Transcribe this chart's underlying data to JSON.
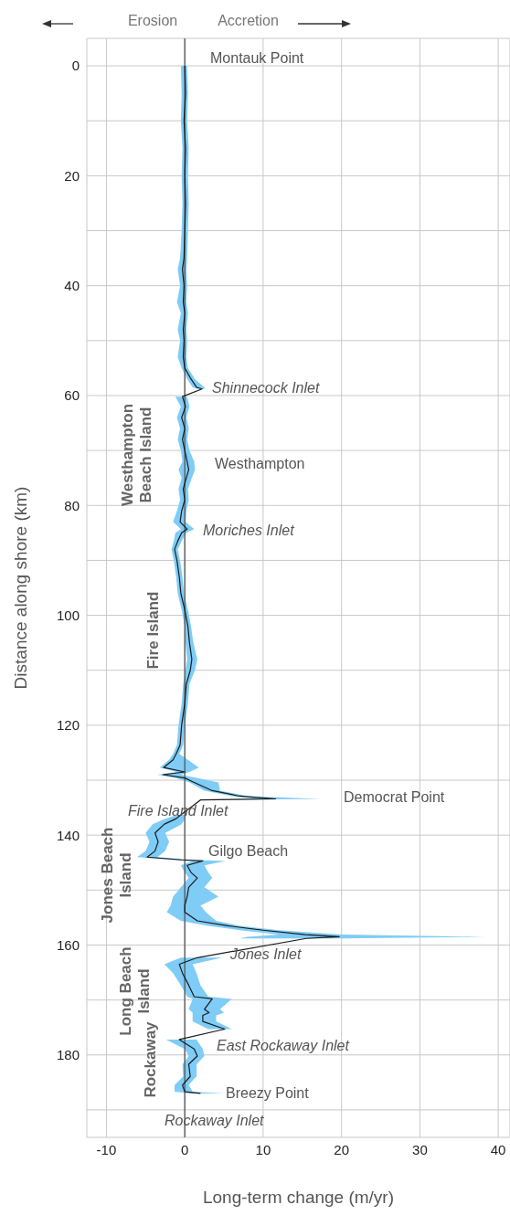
{
  "chart_data": {
    "type": "line",
    "orientation": "horizontal",
    "xlabel": "Long-term change (m/yr)",
    "ylabel": "Distance along shore (km)",
    "xlim": [
      -12.5,
      41.5
    ],
    "xticks": [
      -10,
      0,
      10,
      20,
      30,
      40
    ],
    "ylim": [
      195,
      -5
    ],
    "yticks": [
      0,
      {
        "value": 10,
        "label": null
      },
      20,
      {
        "value": 30,
        "label": null
      },
      40,
      {
        "value": 50,
        "label": null
      },
      60,
      {
        "value": 70,
        "label": null
      },
      80,
      {
        "value": 90,
        "label": null
      },
      100,
      {
        "value": 110,
        "label": null
      },
      120,
      {
        "value": 130,
        "label": null
      },
      140,
      {
        "value": 150,
        "label": null
      },
      160,
      {
        "value": 170,
        "label": null
      },
      180,
      {
        "value": 190,
        "label": null
      }
    ],
    "grid": true,
    "marker": "none",
    "line_style": "solid",
    "ref_lines": [
      {
        "axis": "x",
        "value": 0,
        "color": "#555555"
      }
    ],
    "annotations": [
      "Erosion",
      "Accretion",
      "Montauk Point",
      "Shinnecock Inlet",
      "Westhampton",
      "Moriches Inlet",
      "Democrat Point",
      "Fire Island Inlet",
      "Gilgo Beach",
      "Jones Inlet",
      "East Rockaway Inlet",
      "Breezy Point",
      "Rockaway Inlet",
      "Westhampton Beach Island",
      "Fire Island",
      "Jones Beach Island",
      "Long Beach Island",
      "Rockaway"
    ],
    "series": [
      {
        "color": "#1a1a1a",
        "x": [
          0,
          5,
          10,
          15,
          20,
          25,
          30,
          35,
          37,
          40,
          43,
          45,
          48,
          50,
          53,
          55,
          57,
          58.5,
          58.8,
          59.5,
          60.2,
          62,
          64,
          66,
          68,
          70,
          72,
          73.5,
          75,
          77,
          79,
          81,
          83,
          84.3,
          85,
          86.5,
          88,
          90,
          93,
          96,
          99,
          102,
          105,
          108,
          110,
          112.5,
          116,
          120,
          123.6,
          125.2,
          126.3,
          127.7,
          128.5,
          129,
          129.6,
          130.4,
          131.9,
          132.9,
          133.4,
          133.6,
          134.5,
          136.3,
          137,
          138,
          139.6,
          141.2,
          142.9,
          144,
          144.5,
          144.7,
          145.5,
          146.8,
          147.8,
          149.5,
          151.2,
          152.8,
          154,
          155.6,
          156.5,
          157.3,
          158.1,
          158.5,
          158.8,
          159.8,
          162.3,
          163.5,
          165.1,
          167.3,
          169.4,
          169.8,
          171.7,
          172.3,
          172.8,
          173.9,
          175.3,
          176.2,
          177.2,
          178.9,
          180.2,
          181.7,
          183.9,
          185.5,
          186.7,
          187
        ],
        "values": [
          0,
          0.1,
          -0.1,
          0.1,
          0,
          0.1,
          0,
          -0.1,
          -0.3,
          -0.1,
          -0.2,
          0,
          -0.2,
          -0.1,
          -0.2,
          0,
          0.8,
          1.5,
          2.2,
          null,
          -0.3,
          0.1,
          -0.4,
          0,
          -0.3,
          0,
          0.3,
          0.5,
          0.2,
          -0.2,
          0,
          -0.4,
          -0.6,
          0.3,
          -0.4,
          -0.9,
          -1.3,
          -1,
          -0.7,
          -0.5,
          0,
          0.4,
          0.6,
          0.9,
          0.7,
          0.2,
          0,
          -0.4,
          -0.6,
          -1.1,
          -1.5,
          -2.7,
          0,
          -2.8,
          0,
          1.2,
          3.5,
          7,
          11.6,
          2,
          null,
          -0.5,
          -1.1,
          -2.6,
          -3.8,
          -3.4,
          -3.8,
          -4.8,
          -0.4,
          2.3,
          0.3,
          0.8,
          1.6,
          0.5,
          0.3,
          0,
          0,
          1.6,
          5.5,
          10,
          15.4,
          19.7,
          15.5,
          null,
          1.6,
          -0.7,
          -0.3,
          0.5,
          1.2,
          3.5,
          2.5,
          3.1,
          2.3,
          2.3,
          5.1,
          null,
          -0.7,
          1.2,
          1.6,
          0.5,
          0.7,
          -0.3,
          0,
          2
        ],
        "lower": [
          -0.5,
          -0.4,
          -0.5,
          -0.3,
          -0.4,
          -0.3,
          -0.4,
          -0.6,
          -0.9,
          -0.6,
          -1,
          -0.5,
          -0.9,
          -0.6,
          -0.9,
          -0.4,
          0.3,
          1,
          1.6,
          null,
          -1.2,
          -0.5,
          -1,
          -0.6,
          -0.9,
          -0.5,
          -0.3,
          -0.8,
          -0.4,
          -0.8,
          -0.6,
          -1,
          -1.5,
          -0.5,
          -1.2,
          -1.4,
          -1.7,
          -1.4,
          -1.1,
          -0.9,
          -0.4,
          0,
          0.1,
          0.3,
          0.1,
          -0.2,
          -0.4,
          -0.8,
          -1,
          -1.5,
          -2,
          -3.2,
          -1,
          -3.5,
          -1.2,
          0.6,
          2.5,
          6,
          9,
          1.5,
          null,
          -1,
          -2.5,
          -4.1,
          -5,
          -4.5,
          -5,
          -6.1,
          -1.5,
          1,
          -0.5,
          0,
          0.5,
          -0.5,
          -1.5,
          -1.8,
          -2.3,
          -0.5,
          3,
          7,
          12,
          8,
          7,
          null,
          -0.5,
          -2.6,
          -1.5,
          -0.5,
          0.3,
          1,
          0.5,
          1,
          1,
          1,
          3,
          null,
          -2.4,
          0,
          0.5,
          -0.3,
          -0.2,
          -1.3,
          -1.3,
          1
        ],
        "upper": [
          0.3,
          0.4,
          0.3,
          0.5,
          0.4,
          0.5,
          0.4,
          0.3,
          0.2,
          0.3,
          0.2,
          0.4,
          0.2,
          0.3,
          0.2,
          0.4,
          1.3,
          2.5,
          2.6,
          null,
          0.3,
          0.6,
          0.2,
          0.5,
          0.3,
          0.6,
          1.2,
          1.3,
          0.9,
          0.4,
          0.5,
          0.2,
          0.1,
          1.2,
          0.2,
          -0.4,
          -0.9,
          -0.6,
          -0.3,
          -0.1,
          0.4,
          0.8,
          1.1,
          1.6,
          1.3,
          0.6,
          0.4,
          0,
          -0.2,
          -0.7,
          0.4,
          1.8,
          0.6,
          -0.5,
          1.5,
          4.3,
          4.5,
          8,
          17.3,
          2.5,
          null,
          0,
          0,
          -0.4,
          -2.5,
          -2,
          -2.5,
          -3.5,
          1,
          5.2,
          2.5,
          3,
          3.5,
          2.5,
          4.3,
          2,
          2.7,
          4,
          7,
          12,
          20,
          38.2,
          20,
          null,
          4.8,
          1,
          1.5,
          2,
          3,
          6,
          4.5,
          5,
          4,
          4,
          6,
          null,
          1.5,
          2.3,
          2.5,
          1.5,
          1.5,
          0.5,
          1,
          5.1
        ]
      }
    ]
  }
}
